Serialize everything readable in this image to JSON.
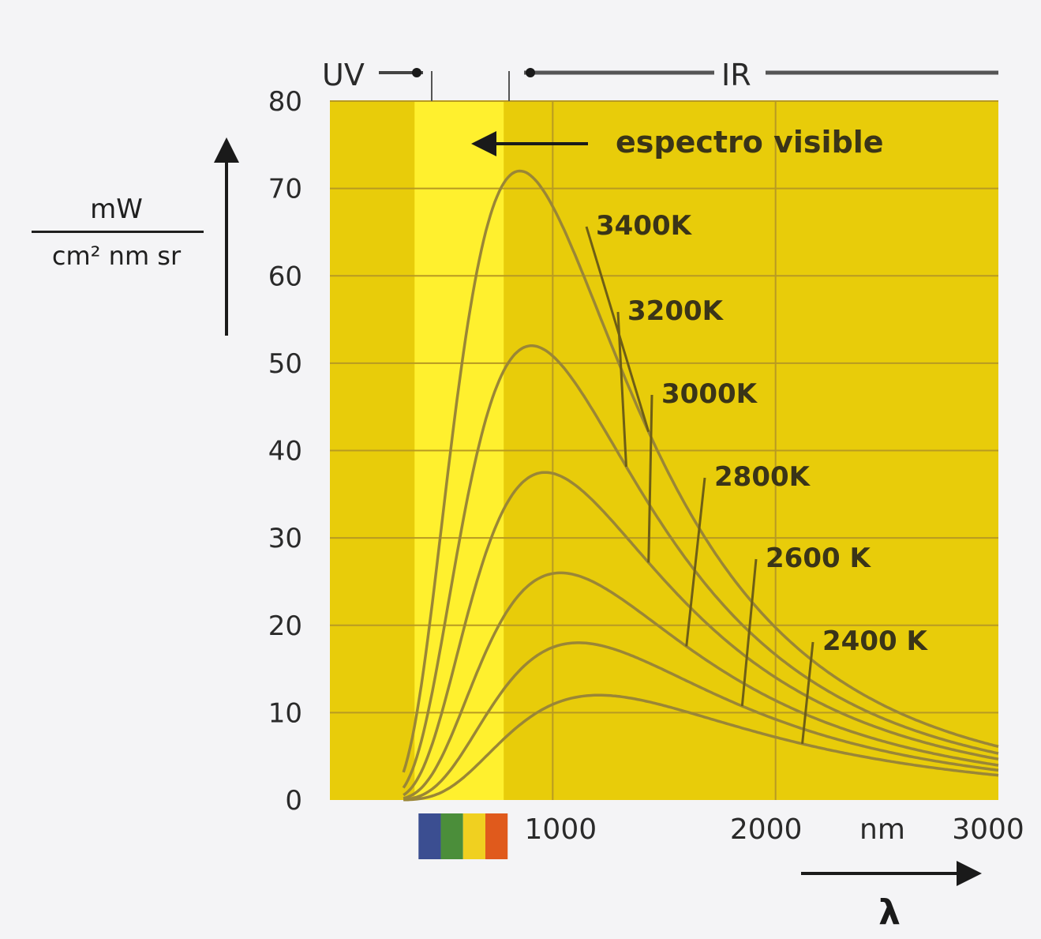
{
  "chart_data": {
    "type": "line",
    "xlabel": "λ",
    "x_unit": "nm",
    "ylabel": {
      "numerator": "mW",
      "denominator": "cm² nm sr"
    },
    "xlim": [
      0,
      3000
    ],
    "ylim": [
      0,
      80
    ],
    "x_ticks": [
      "1000",
      "2000",
      "3000"
    ],
    "y_ticks": [
      "0",
      "10",
      "20",
      "30",
      "40",
      "50",
      "60",
      "70",
      "80"
    ],
    "grid": true,
    "region_labels": {
      "uv": "UV",
      "ir": "IR",
      "visible": "espectro visible"
    },
    "visible_band_nm": [
      380,
      780
    ],
    "series": [
      {
        "name": "3400K",
        "peak_nm": 852,
        "peak_value": 72
      },
      {
        "name": "3200K",
        "peak_nm": 906,
        "peak_value": 52
      },
      {
        "name": "3000K",
        "peak_nm": 966,
        "peak_value": 37.5
      },
      {
        "name": "2800K",
        "peak_nm": 1035,
        "peak_value": 26
      },
      {
        "name": "2600 K",
        "peak_nm": 1114,
        "peak_value": 18
      },
      {
        "name": "2400 K",
        "peak_nm": 1207,
        "peak_value": 12
      }
    ],
    "colors": {
      "background": "#e8cc0a",
      "visible_band": "#fff02e",
      "curve": "#9a8636",
      "grid": "#b89a22",
      "spectrum_bar": [
        "#3b4e91",
        "#4b8e3a",
        "#f0d020",
        "#e05a1c"
      ]
    }
  }
}
